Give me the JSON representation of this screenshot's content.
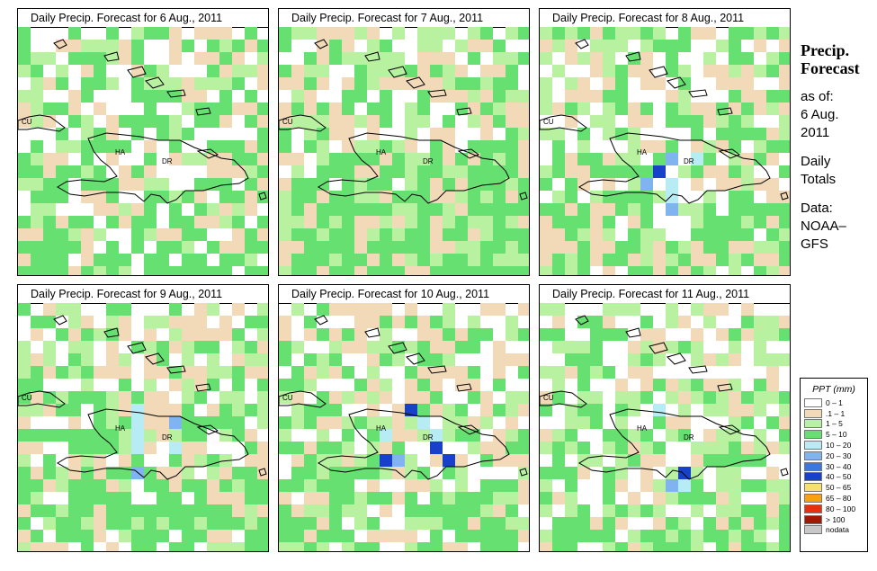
{
  "panels": [
    {
      "title": "Daily Precip. Forecast for  6 Aug., 2011",
      "seed": 11,
      "wet": 0.35
    },
    {
      "title": "Daily Precip. Forecast for  7 Aug., 2011",
      "seed": 23,
      "wet": 0.55
    },
    {
      "title": "Daily Precip. Forecast for  8 Aug., 2011",
      "seed": 37,
      "wet": 0.45
    },
    {
      "title": "Daily Precip. Forecast for  9 Aug., 2011",
      "seed": 41,
      "wet": 0.4
    },
    {
      "title": "Daily Precip. Forecast for  10 Aug., 2011",
      "seed": 53,
      "wet": 0.5
    },
    {
      "title": "Daily Precip. Forecast for  11 Aug., 2011",
      "seed": 67,
      "wet": 0.6
    }
  ],
  "map_labels": {
    "cuba": "CU",
    "haiti": "HA",
    "dominican_republic": "DR"
  },
  "sidebar": {
    "title_line1": "Precip.",
    "title_line2": "Forecast",
    "asof_label": "as of:",
    "date_line1": "6 Aug.",
    "date_line2": "2011",
    "totals_line1": "Daily",
    "totals_line2": "Totals",
    "data_line1": "Data:",
    "data_line2": "NOAA–",
    "data_line3": "GFS"
  },
  "legend": {
    "title": "PPT (mm)",
    "items": [
      {
        "label": "0 – 1",
        "color": "#ffffff"
      },
      {
        "label": ".1 – 1",
        "color": "#f2d9b8"
      },
      {
        "label": "1 – 5",
        "color": "#b8f2a0"
      },
      {
        "label": "5 – 10",
        "color": "#66e070"
      },
      {
        "label": "10 – 20",
        "color": "#b8ecf4"
      },
      {
        "label": "20 – 30",
        "color": "#7fb4f0"
      },
      {
        "label": "30 – 40",
        "color": "#3a78e0"
      },
      {
        "label": "40 – 50",
        "color": "#1840c8"
      },
      {
        "label": "50 – 65",
        "color": "#f8e070"
      },
      {
        "label": "65 – 80",
        "color": "#f8a010"
      },
      {
        "label": "80 – 100",
        "color": "#e83010"
      },
      {
        "label": "> 100",
        "color": "#a01808"
      },
      {
        "label": "nodata",
        "color": "#c8c8c8"
      }
    ]
  }
}
